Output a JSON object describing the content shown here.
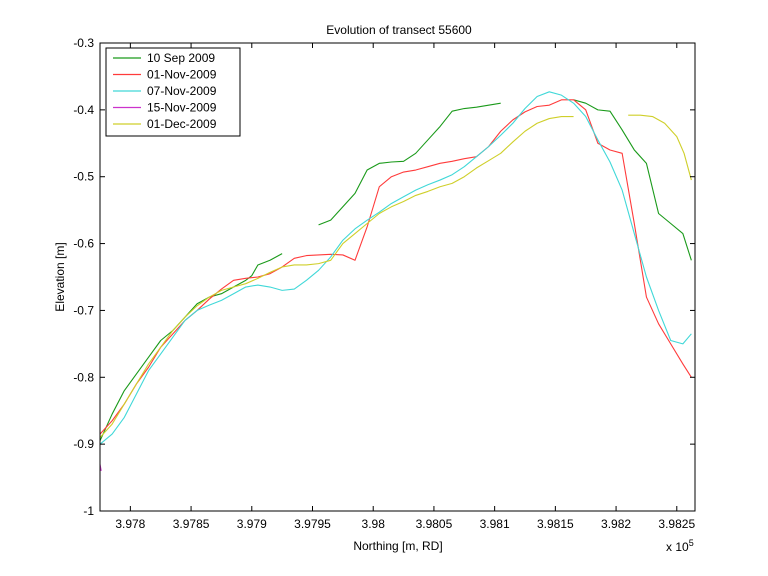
{
  "chart_data": {
    "type": "line",
    "title": "Evolution of transect 55600",
    "xlabel": "Northing [m, RD]",
    "ylabel": "Elevation [m]",
    "x_multiplier_label": "x 10",
    "x_multiplier_exponent": "5",
    "xlim": [
      3.97775,
      3.98265
    ],
    "ylim": [
      -1.0,
      -0.3
    ],
    "grid": false,
    "legend_position": "top-left",
    "x_ticks": [
      3.978,
      3.9785,
      3.979,
      3.9795,
      3.98,
      3.9805,
      3.981,
      3.9815,
      3.982,
      3.9825
    ],
    "x_tick_labels": [
      "3.978",
      "3.9785",
      "3.979",
      "3.9795",
      "3.98",
      "3.9805",
      "3.981",
      "3.9815",
      "3.982",
      "3.9825"
    ],
    "y_ticks": [
      -1.0,
      -0.9,
      -0.8,
      -0.7,
      -0.6,
      -0.5,
      -0.4,
      -0.3
    ],
    "y_tick_labels": [
      "-1",
      "-0.9",
      "-0.8",
      "-0.7",
      "-0.6",
      "-0.5",
      "-0.4",
      "-0.3"
    ],
    "series": [
      {
        "name": "10 Sep 2009",
        "color": "#1a9a1a",
        "segments": [
          [
            [
              3.97775,
              -0.895
            ],
            [
              3.97785,
              -0.855
            ],
            [
              3.97795,
              -0.82
            ],
            [
              3.97805,
              -0.795
            ],
            [
              3.97815,
              -0.77
            ],
            [
              3.97825,
              -0.745
            ],
            [
              3.97835,
              -0.73
            ],
            [
              3.97845,
              -0.71
            ],
            [
              3.97855,
              -0.69
            ],
            [
              3.97865,
              -0.68
            ],
            [
              3.97875,
              -0.675
            ],
            [
              3.97885,
              -0.665
            ],
            [
              3.97895,
              -0.655
            ],
            [
              3.979,
              -0.648
            ],
            [
              3.97905,
              -0.632
            ],
            [
              3.97915,
              -0.625
            ],
            [
              3.97925,
              -0.615
            ]
          ],
          [
            [
              3.97955,
              -0.572
            ],
            [
              3.97965,
              -0.565
            ],
            [
              3.97975,
              -0.545
            ],
            [
              3.97985,
              -0.525
            ],
            [
              3.97995,
              -0.49
            ],
            [
              3.98005,
              -0.48
            ],
            [
              3.98015,
              -0.478
            ],
            [
              3.98025,
              -0.477
            ],
            [
              3.98035,
              -0.465
            ],
            [
              3.98045,
              -0.445
            ],
            [
              3.98055,
              -0.425
            ],
            [
              3.98065,
              -0.402
            ],
            [
              3.98075,
              -0.398
            ],
            [
              3.98085,
              -0.396
            ],
            [
              3.98095,
              -0.393
            ],
            [
              3.98105,
              -0.39
            ]
          ],
          [
            [
              3.98165,
              -0.385
            ],
            [
              3.98175,
              -0.39
            ],
            [
              3.98185,
              -0.4
            ],
            [
              3.98195,
              -0.402
            ],
            [
              3.98205,
              -0.43
            ],
            [
              3.98215,
              -0.46
            ],
            [
              3.98225,
              -0.48
            ],
            [
              3.98235,
              -0.555
            ],
            [
              3.98245,
              -0.57
            ],
            [
              3.98255,
              -0.585
            ],
            [
              3.98262,
              -0.625
            ]
          ]
        ]
      },
      {
        "name": "01-Nov-2009",
        "color": "#ff3b3b",
        "segments": [
          [
            [
              3.97775,
              -0.885
            ],
            [
              3.97785,
              -0.865
            ],
            [
              3.97795,
              -0.84
            ],
            [
              3.97805,
              -0.81
            ],
            [
              3.97815,
              -0.785
            ],
            [
              3.97825,
              -0.755
            ],
            [
              3.97835,
              -0.735
            ],
            [
              3.97845,
              -0.715
            ],
            [
              3.97855,
              -0.7
            ],
            [
              3.97865,
              -0.683
            ],
            [
              3.97875,
              -0.668
            ],
            [
              3.97885,
              -0.655
            ],
            [
              3.97895,
              -0.652
            ],
            [
              3.97905,
              -0.65
            ],
            [
              3.97915,
              -0.645
            ],
            [
              3.97925,
              -0.635
            ],
            [
              3.97935,
              -0.622
            ],
            [
              3.97945,
              -0.618
            ],
            [
              3.97955,
              -0.617
            ],
            [
              3.97965,
              -0.616
            ],
            [
              3.97975,
              -0.617
            ],
            [
              3.97985,
              -0.625
            ],
            [
              3.97995,
              -0.575
            ],
            [
              3.98005,
              -0.515
            ],
            [
              3.98015,
              -0.5
            ],
            [
              3.98025,
              -0.493
            ],
            [
              3.98035,
              -0.49
            ],
            [
              3.98045,
              -0.485
            ],
            [
              3.98055,
              -0.48
            ],
            [
              3.98065,
              -0.477
            ],
            [
              3.98075,
              -0.473
            ],
            [
              3.98085,
              -0.47
            ],
            [
              3.98095,
              -0.455
            ],
            [
              3.98105,
              -0.432
            ],
            [
              3.98115,
              -0.415
            ],
            [
              3.98125,
              -0.403
            ],
            [
              3.98135,
              -0.395
            ],
            [
              3.98145,
              -0.393
            ],
            [
              3.98155,
              -0.385
            ],
            [
              3.98165,
              -0.385
            ],
            [
              3.98175,
              -0.4
            ],
            [
              3.98185,
              -0.45
            ],
            [
              3.98195,
              -0.46
            ],
            [
              3.98205,
              -0.465
            ],
            [
              3.98215,
              -0.57
            ],
            [
              3.98225,
              -0.68
            ],
            [
              3.98235,
              -0.72
            ],
            [
              3.98245,
              -0.75
            ],
            [
              3.98255,
              -0.78
            ],
            [
              3.98262,
              -0.8
            ]
          ]
        ]
      },
      {
        "name": "07-Nov-2009",
        "color": "#40d8d8",
        "segments": [
          [
            [
              3.97775,
              -0.9
            ],
            [
              3.97785,
              -0.885
            ],
            [
              3.97795,
              -0.86
            ],
            [
              3.97805,
              -0.825
            ],
            [
              3.97815,
              -0.79
            ],
            [
              3.97825,
              -0.765
            ],
            [
              3.97835,
              -0.74
            ],
            [
              3.97845,
              -0.715
            ],
            [
              3.97855,
              -0.7
            ],
            [
              3.97865,
              -0.692
            ],
            [
              3.97875,
              -0.685
            ],
            [
              3.97885,
              -0.675
            ],
            [
              3.97895,
              -0.665
            ],
            [
              3.97905,
              -0.662
            ],
            [
              3.97915,
              -0.665
            ],
            [
              3.97925,
              -0.67
            ],
            [
              3.97935,
              -0.668
            ],
            [
              3.97945,
              -0.655
            ],
            [
              3.97955,
              -0.64
            ],
            [
              3.97965,
              -0.62
            ],
            [
              3.97975,
              -0.595
            ],
            [
              3.97985,
              -0.578
            ],
            [
              3.97995,
              -0.565
            ],
            [
              3.98005,
              -0.553
            ],
            [
              3.98015,
              -0.54
            ],
            [
              3.98025,
              -0.53
            ],
            [
              3.98035,
              -0.52
            ],
            [
              3.98045,
              -0.512
            ],
            [
              3.98055,
              -0.505
            ],
            [
              3.98065,
              -0.497
            ],
            [
              3.98075,
              -0.485
            ],
            [
              3.98085,
              -0.47
            ],
            [
              3.98095,
              -0.455
            ],
            [
              3.98105,
              -0.438
            ],
            [
              3.98115,
              -0.42
            ],
            [
              3.98125,
              -0.398
            ],
            [
              3.98135,
              -0.38
            ],
            [
              3.98145,
              -0.373
            ],
            [
              3.98155,
              -0.378
            ],
            [
              3.98165,
              -0.39
            ],
            [
              3.98175,
              -0.41
            ],
            [
              3.98185,
              -0.445
            ],
            [
              3.98195,
              -0.478
            ],
            [
              3.98205,
              -0.52
            ],
            [
              3.98215,
              -0.585
            ],
            [
              3.98225,
              -0.65
            ],
            [
              3.98235,
              -0.7
            ],
            [
              3.98245,
              -0.745
            ],
            [
              3.98255,
              -0.75
            ],
            [
              3.98262,
              -0.735
            ]
          ]
        ]
      },
      {
        "name": "15-Nov-2009",
        "color": "#cc33cc",
        "segments": [
          [
            [
              3.97775,
              -0.93
            ],
            [
              3.97776,
              -0.94
            ]
          ]
        ]
      },
      {
        "name": "01-Dec-2009",
        "color": "#cfcf2a",
        "segments": [
          [
            [
              3.97775,
              -0.89
            ],
            [
              3.97785,
              -0.87
            ],
            [
              3.97795,
              -0.84
            ],
            [
              3.97805,
              -0.81
            ],
            [
              3.97815,
              -0.78
            ],
            [
              3.97825,
              -0.755
            ],
            [
              3.97835,
              -0.73
            ],
            [
              3.97845,
              -0.71
            ],
            [
              3.97855,
              -0.693
            ],
            [
              3.97865,
              -0.68
            ],
            [
              3.97875,
              -0.67
            ],
            [
              3.97885,
              -0.665
            ],
            [
              3.97895,
              -0.66
            ],
            [
              3.97905,
              -0.652
            ],
            [
              3.97915,
              -0.643
            ],
            [
              3.97925,
              -0.635
            ],
            [
              3.97935,
              -0.632
            ],
            [
              3.97945,
              -0.632
            ],
            [
              3.97955,
              -0.63
            ],
            [
              3.97965,
              -0.625
            ],
            [
              3.97975,
              -0.6
            ],
            [
              3.97985,
              -0.585
            ],
            [
              3.97995,
              -0.57
            ],
            [
              3.98005,
              -0.555
            ],
            [
              3.98015,
              -0.545
            ],
            [
              3.98025,
              -0.537
            ],
            [
              3.98035,
              -0.528
            ],
            [
              3.98045,
              -0.522
            ],
            [
              3.98055,
              -0.515
            ],
            [
              3.98065,
              -0.51
            ],
            [
              3.98075,
              -0.5
            ],
            [
              3.98085,
              -0.487
            ],
            [
              3.98095,
              -0.476
            ],
            [
              3.98105,
              -0.465
            ],
            [
              3.98115,
              -0.448
            ],
            [
              3.98125,
              -0.432
            ],
            [
              3.98135,
              -0.42
            ],
            [
              3.98145,
              -0.413
            ],
            [
              3.98155,
              -0.41
            ],
            [
              3.98165,
              -0.41
            ]
          ],
          [
            [
              3.9821,
              -0.408
            ],
            [
              3.9822,
              -0.408
            ],
            [
              3.9823,
              -0.41
            ],
            [
              3.9824,
              -0.42
            ],
            [
              3.9825,
              -0.44
            ],
            [
              3.98256,
              -0.465
            ],
            [
              3.98262,
              -0.505
            ]
          ]
        ]
      }
    ]
  }
}
